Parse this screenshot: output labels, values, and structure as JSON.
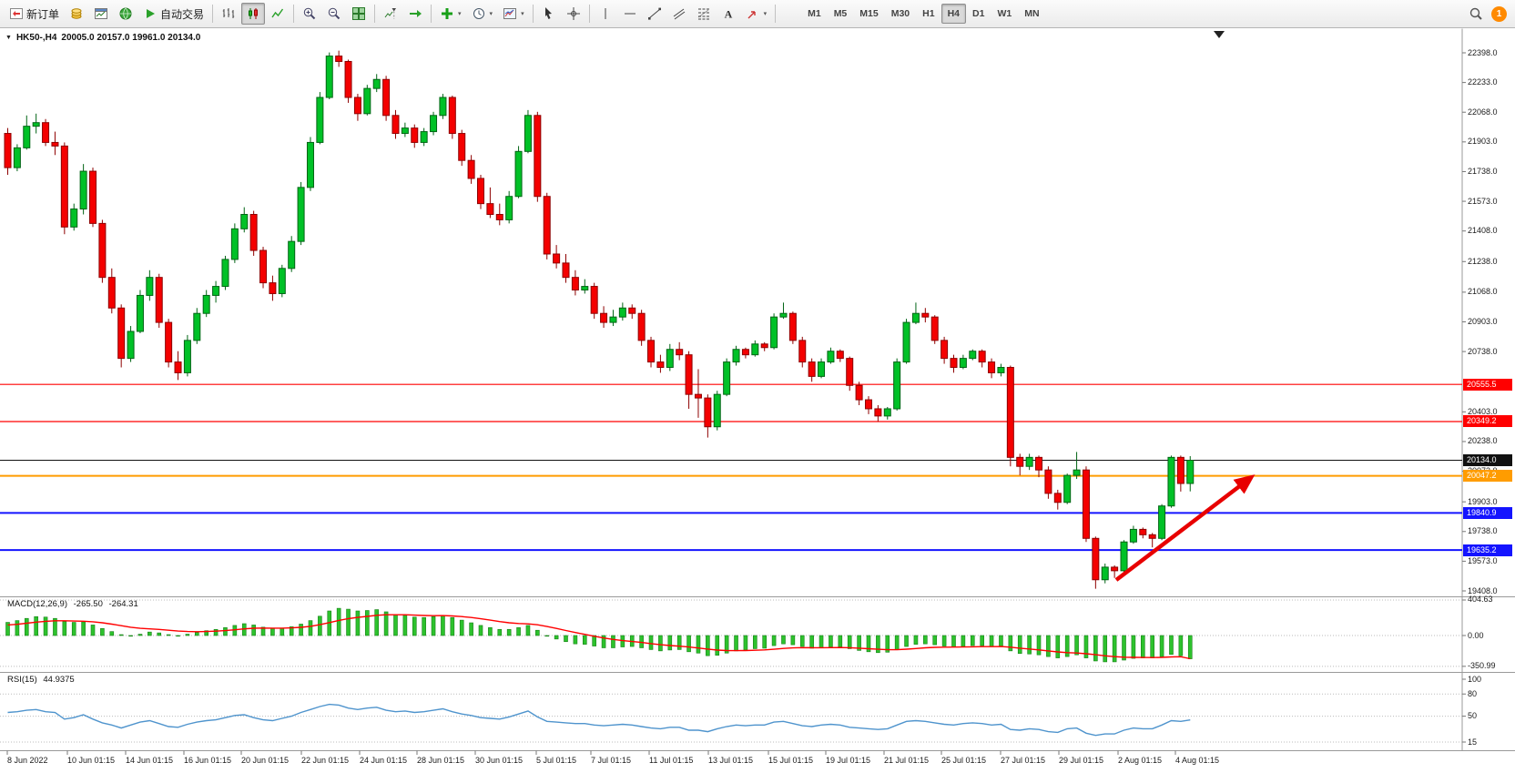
{
  "toolbar": {
    "new_order": "新订单",
    "auto_trading": "自动交易",
    "timeframes": [
      "M1",
      "M5",
      "M15",
      "M30",
      "H1",
      "H4",
      "D1",
      "W1",
      "MN"
    ],
    "active_timeframe": "H4",
    "notification_count": "1"
  },
  "chart": {
    "title_symbol": "HK50-,H4",
    "title_ohlc": "20005.0 20157.0 19961.0 20134.0"
  },
  "indicators": {
    "macd": {
      "name": "MACD(12,26,9)",
      "value_main": "-265.50",
      "value_signal": "-264.31"
    },
    "rsi": {
      "name": "RSI(15)",
      "value": "44.9375"
    }
  },
  "colors": {
    "bull": "#00C127",
    "bull_border": "#006414",
    "bear": "#F40000",
    "bear_border": "#8E0000",
    "macd_hist": "#2DC22D",
    "macd_hist_border": "#168016",
    "macd_signal": "#FF0000",
    "rsi_line": "#4F94CD",
    "arrow": "#E80000"
  },
  "chart_data": {
    "type": "candlestick",
    "symbol": "HK50-",
    "period": "H4",
    "current_bar": {
      "open": 20005.0,
      "high": 20157.0,
      "low": 19961.0,
      "close": 20134.0
    },
    "price_axis_range": [
      19408,
      22398
    ],
    "price_axis_labels": [
      22398,
      22233,
      22068,
      21903,
      21738,
      21573,
      21408,
      21238,
      21068,
      20903,
      20738,
      20403,
      20238,
      20073,
      19903,
      19738,
      19573,
      19408
    ],
    "horizontal_lines": [
      {
        "price": 20555.5,
        "color": "#FF0000",
        "width": 1.2
      },
      {
        "price": 20349.2,
        "color": "#FF0000",
        "width": 1.2
      },
      {
        "price": 20134.0,
        "color": "#111111",
        "width": 1,
        "role": "current_price"
      },
      {
        "price": 20047.2,
        "color": "#FF9C00",
        "width": 2
      },
      {
        "price": 19840.9,
        "color": "#1414FF",
        "width": 2
      },
      {
        "price": 19635.2,
        "color": "#1414FF",
        "width": 2
      }
    ],
    "annotations": [
      {
        "type": "arrow",
        "color": "#E80000",
        "note": "upward trend arrow from the lows toward the orange level"
      }
    ],
    "candles": [
      [
        21950,
        21980,
        21720,
        21760
      ],
      [
        21760,
        21890,
        21740,
        21870
      ],
      [
        21870,
        22050,
        21860,
        21990
      ],
      [
        21990,
        22060,
        21950,
        22010
      ],
      [
        22010,
        22030,
        21880,
        21900
      ],
      [
        21900,
        21960,
        21830,
        21880
      ],
      [
        21880,
        21900,
        21390,
        21430
      ],
      [
        21430,
        21560,
        21410,
        21530
      ],
      [
        21530,
        21780,
        21500,
        21740
      ],
      [
        21740,
        21760,
        21430,
        21450
      ],
      [
        21450,
        21470,
        21120,
        21150
      ],
      [
        21150,
        21200,
        20950,
        20980
      ],
      [
        20980,
        21000,
        20650,
        20700
      ],
      [
        20700,
        20880,
        20680,
        20850
      ],
      [
        20850,
        21080,
        20840,
        21050
      ],
      [
        21050,
        21190,
        21020,
        21150
      ],
      [
        21150,
        21170,
        20870,
        20900
      ],
      [
        20900,
        20920,
        20650,
        20680
      ],
      [
        20680,
        20740,
        20580,
        20620
      ],
      [
        20620,
        20830,
        20600,
        20800
      ],
      [
        20800,
        20980,
        20780,
        20950
      ],
      [
        20950,
        21080,
        20930,
        21050
      ],
      [
        21050,
        21130,
        21010,
        21100
      ],
      [
        21100,
        21270,
        21080,
        21250
      ],
      [
        21250,
        21450,
        21230,
        21420
      ],
      [
        21420,
        21540,
        21400,
        21500
      ],
      [
        21500,
        21520,
        21270,
        21300
      ],
      [
        21300,
        21320,
        21090,
        21120
      ],
      [
        21120,
        21160,
        21020,
        21060
      ],
      [
        21060,
        21220,
        21040,
        21200
      ],
      [
        21200,
        21380,
        21180,
        21350
      ],
      [
        21350,
        21680,
        21330,
        21650
      ],
      [
        21650,
        21930,
        21630,
        21900
      ],
      [
        21900,
        22180,
        21890,
        22150
      ],
      [
        22150,
        22400,
        22140,
        22380
      ],
      [
        22380,
        22410,
        22320,
        22350
      ],
      [
        22350,
        22360,
        22120,
        22150
      ],
      [
        22150,
        22170,
        22020,
        22060
      ],
      [
        22060,
        22220,
        22050,
        22200
      ],
      [
        22200,
        22280,
        22180,
        22250
      ],
      [
        22250,
        22270,
        22020,
        22050
      ],
      [
        22050,
        22080,
        21920,
        21950
      ],
      [
        21950,
        22010,
        21930,
        21980
      ],
      [
        21980,
        22000,
        21870,
        21900
      ],
      [
        21900,
        21980,
        21880,
        21960
      ],
      [
        21960,
        22070,
        21940,
        22050
      ],
      [
        22050,
        22170,
        22030,
        22150
      ],
      [
        22150,
        22160,
        21920,
        21950
      ],
      [
        21950,
        21970,
        21770,
        21800
      ],
      [
        21800,
        21830,
        21670,
        21700
      ],
      [
        21700,
        21720,
        21530,
        21560
      ],
      [
        21560,
        21650,
        21480,
        21500
      ],
      [
        21500,
        21560,
        21440,
        21470
      ],
      [
        21470,
        21630,
        21450,
        21600
      ],
      [
        21600,
        21880,
        21590,
        21850
      ],
      [
        21850,
        22080,
        21840,
        22050
      ],
      [
        22050,
        22070,
        21570,
        21600
      ],
      [
        21600,
        21620,
        21250,
        21280
      ],
      [
        21280,
        21330,
        21200,
        21230
      ],
      [
        21230,
        21280,
        21120,
        21150
      ],
      [
        21150,
        21190,
        21050,
        21080
      ],
      [
        21080,
        21140,
        21060,
        21100
      ],
      [
        21100,
        21120,
        20920,
        20950
      ],
      [
        20950,
        20990,
        20870,
        20900
      ],
      [
        20900,
        20970,
        20880,
        20930
      ],
      [
        20930,
        21010,
        20910,
        20980
      ],
      [
        20980,
        21000,
        20920,
        20950
      ],
      [
        20950,
        20970,
        20770,
        20800
      ],
      [
        20800,
        20820,
        20650,
        20680
      ],
      [
        20680,
        20720,
        20620,
        20650
      ],
      [
        20650,
        20780,
        20630,
        20750
      ],
      [
        20750,
        20790,
        20690,
        20720
      ],
      [
        20720,
        20740,
        20420,
        20500
      ],
      [
        20500,
        20640,
        20370,
        20480
      ],
      [
        20480,
        20500,
        20260,
        20320
      ],
      [
        20320,
        20520,
        20300,
        20500
      ],
      [
        20500,
        20700,
        20490,
        20680
      ],
      [
        20680,
        20770,
        20660,
        20750
      ],
      [
        20750,
        20760,
        20700,
        20720
      ],
      [
        20720,
        20800,
        20710,
        20780
      ],
      [
        20780,
        20790,
        20740,
        20760
      ],
      [
        20760,
        20950,
        20750,
        20930
      ],
      [
        20930,
        21010,
        20920,
        20950
      ],
      [
        20950,
        20960,
        20780,
        20800
      ],
      [
        20800,
        20820,
        20650,
        20680
      ],
      [
        20680,
        20700,
        20570,
        20600
      ],
      [
        20600,
        20700,
        20590,
        20680
      ],
      [
        20680,
        20760,
        20670,
        20740
      ],
      [
        20740,
        20750,
        20680,
        20700
      ],
      [
        20700,
        20710,
        20520,
        20550
      ],
      [
        20550,
        20570,
        20440,
        20470
      ],
      [
        20470,
        20490,
        20390,
        20420
      ],
      [
        20420,
        20440,
        20350,
        20380
      ],
      [
        20380,
        20430,
        20360,
        20420
      ],
      [
        20420,
        20700,
        20410,
        20680
      ],
      [
        20680,
        20920,
        20670,
        20900
      ],
      [
        20900,
        21010,
        20890,
        20950
      ],
      [
        20950,
        20980,
        20900,
        20930
      ],
      [
        20930,
        20940,
        20780,
        20800
      ],
      [
        20800,
        20820,
        20670,
        20700
      ],
      [
        20700,
        20720,
        20620,
        20650
      ],
      [
        20650,
        20720,
        20640,
        20700
      ],
      [
        20700,
        20750,
        20690,
        20740
      ],
      [
        20740,
        20750,
        20650,
        20680
      ],
      [
        20680,
        20700,
        20590,
        20620
      ],
      [
        20620,
        20670,
        20600,
        20650
      ],
      [
        20650,
        20660,
        20100,
        20150
      ],
      [
        20150,
        20170,
        20050,
        20100
      ],
      [
        20100,
        20170,
        20080,
        20150
      ],
      [
        20150,
        20160,
        20040,
        20080
      ],
      [
        20080,
        20100,
        19920,
        19950
      ],
      [
        19950,
        19970,
        19860,
        19900
      ],
      [
        19900,
        20060,
        19890,
        20050
      ],
      [
        20050,
        20180,
        20030,
        20080
      ],
      [
        20080,
        20100,
        19680,
        19700
      ],
      [
        19700,
        19710,
        19420,
        19470
      ],
      [
        19470,
        19560,
        19450,
        19540
      ],
      [
        19540,
        19550,
        19480,
        19520
      ],
      [
        19520,
        19690,
        19510,
        19680
      ],
      [
        19680,
        19770,
        19670,
        19750
      ],
      [
        19750,
        19760,
        19700,
        19720
      ],
      [
        19720,
        19730,
        19650,
        19700
      ],
      [
        19700,
        19890,
        19690,
        19880
      ],
      [
        19880,
        20160,
        19870,
        20150
      ],
      [
        20150,
        20160,
        19960,
        20005
      ],
      [
        20005,
        20157,
        19961,
        20134
      ]
    ],
    "macd": {
      "label": "MACD(12,26,9)",
      "values": [
        -265.5,
        -264.31
      ],
      "axis_labels": [
        404.63,
        0.0,
        -350.99
      ],
      "histogram": [
        150,
        170,
        195,
        215,
        210,
        195,
        160,
        150,
        155,
        120,
        80,
        45,
        10,
        -5,
        15,
        40,
        30,
        10,
        0,
        15,
        35,
        55,
        70,
        90,
        115,
        135,
        120,
        95,
        80,
        85,
        100,
        130,
        170,
        220,
        280,
        310,
        300,
        280,
        285,
        295,
        270,
        240,
        230,
        210,
        205,
        215,
        230,
        205,
        175,
        145,
        115,
        90,
        70,
        70,
        90,
        115,
        60,
        0,
        -40,
        -70,
        -95,
        -100,
        -120,
        -140,
        -140,
        -130,
        -125,
        -140,
        -160,
        -175,
        -165,
        -160,
        -185,
        -200,
        -230,
        -225,
        -200,
        -175,
        -165,
        -150,
        -145,
        -115,
        -95,
        -105,
        -125,
        -145,
        -140,
        -130,
        -130,
        -150,
        -170,
        -185,
        -195,
        -190,
        -160,
        -125,
        -100,
        -95,
        -105,
        -120,
        -130,
        -125,
        -115,
        -115,
        -125,
        -120,
        -175,
        -205,
        -210,
        -220,
        -240,
        -255,
        -240,
        -220,
        -255,
        -290,
        -300,
        -300,
        -280,
        -260,
        -255,
        -255,
        -240,
        -215,
        -230,
        -265.5
      ],
      "signal": [
        120,
        128,
        140,
        152,
        162,
        168,
        168,
        165,
        163,
        157,
        145,
        130,
        112,
        94,
        82,
        76,
        69,
        60,
        51,
        46,
        44,
        46,
        50,
        56,
        65,
        76,
        83,
        85,
        84,
        84,
        87,
        93,
        105,
        123,
        147,
        172,
        192,
        206,
        218,
        230,
        236,
        237,
        236,
        232,
        228,
        226,
        227,
        223,
        216,
        205,
        191,
        175,
        159,
        145,
        137,
        133,
        122,
        103,
        81,
        57,
        34,
        13,
        -8,
        -28,
        -45,
        -58,
        -68,
        -79,
        -92,
        -105,
        -114,
        -121,
        -131,
        -142,
        -155,
        -166,
        -171,
        -172,
        -171,
        -168,
        -164,
        -157,
        -147,
        -141,
        -138,
        -139,
        -139,
        -138,
        -137,
        -139,
        -144,
        -150,
        -157,
        -162,
        -162,
        -156,
        -148,
        -140,
        -135,
        -133,
        -132,
        -131,
        -129,
        -127,
        -127,
        -126,
        -133,
        -144,
        -154,
        -164,
        -175,
        -187,
        -195,
        -199,
        -207,
        -219,
        -231,
        -241,
        -247,
        -249,
        -250,
        -251,
        -249,
        -244,
        -242,
        -264.3
      ]
    },
    "rsi": {
      "label": "RSI(15)",
      "value": 44.9375,
      "axis_labels": [
        100,
        80,
        50,
        15
      ],
      "line": [
        55,
        56,
        58,
        59,
        56,
        55,
        46,
        48,
        52,
        46,
        41,
        38,
        34,
        38,
        42,
        44,
        40,
        36,
        35,
        39,
        42,
        44,
        45,
        48,
        51,
        52,
        48,
        45,
        44,
        47,
        50,
        55,
        59,
        63,
        66,
        65,
        61,
        59,
        61,
        62,
        58,
        56,
        57,
        55,
        56,
        58,
        60,
        56,
        53,
        51,
        48,
        47,
        46,
        49,
        53,
        57,
        49,
        43,
        42,
        41,
        40,
        40,
        38,
        37,
        38,
        39,
        38,
        36,
        34,
        33,
        35,
        35,
        31,
        31,
        29,
        33,
        36,
        38,
        37,
        38,
        38,
        42,
        43,
        40,
        37,
        36,
        38,
        39,
        38,
        35,
        34,
        33,
        32,
        33,
        38,
        43,
        44,
        43,
        41,
        39,
        38,
        40,
        41,
        40,
        38,
        39,
        32,
        31,
        33,
        32,
        29,
        28,
        33,
        34,
        27,
        24,
        26,
        26,
        31,
        34,
        33,
        33,
        38,
        44,
        43,
        44.94
      ]
    },
    "time_labels": [
      "8 Jun 2022",
      "10 Jun 01:15",
      "14 Jun 01:15",
      "16 Jun 01:15",
      "20 Jun 01:15",
      "22 Jun 01:15",
      "24 Jun 01:15",
      "28 Jun 01:15",
      "30 Jun 01:15",
      "5 Jul 01:15",
      "7 Jul 01:15",
      "11 Jul 01:15",
      "13 Jul 01:15",
      "15 Jul 01:15",
      "19 Jul 01:15",
      "21 Jul 01:15",
      "25 Jul 01:15",
      "27 Jul 01:15",
      "29 Jul 01:15",
      "2 Aug 01:15",
      "4 Aug 01:15"
    ]
  }
}
